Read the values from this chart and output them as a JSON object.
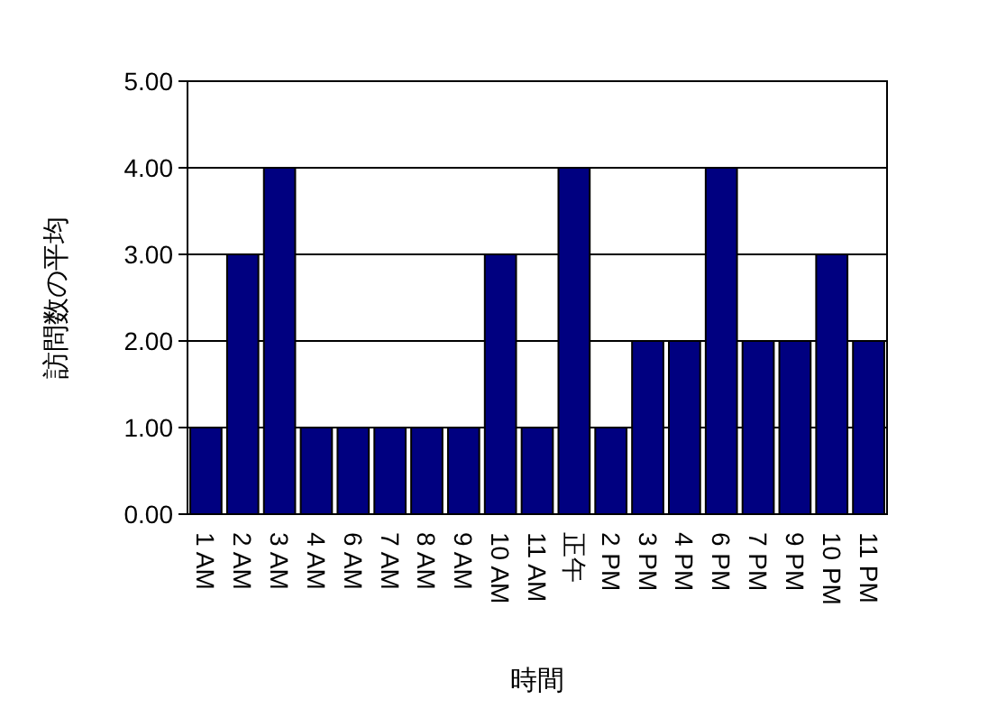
{
  "chart_data": {
    "type": "bar",
    "xlabel": "時間",
    "ylabel": "訪問数の平均",
    "categories": [
      "1 AM",
      "2 AM",
      "3 AM",
      "4 AM",
      "6 AM",
      "7 AM",
      "8 AM",
      "9 AM",
      "10 AM",
      "11 AM",
      "正午",
      "2 PM",
      "3 PM",
      "4 PM",
      "6 PM",
      "7 PM",
      "9 PM",
      "10 PM",
      "11 PM"
    ],
    "values": [
      1,
      3,
      4,
      1,
      1,
      1,
      1,
      1,
      3,
      1,
      4,
      1,
      2,
      2,
      4,
      2,
      2,
      3,
      2
    ],
    "color": "#000080",
    "ylim": [
      0,
      5
    ],
    "yticks": [
      {
        "value": 0,
        "label": "0.00"
      },
      {
        "value": 1,
        "label": "1.00"
      },
      {
        "value": 2,
        "label": "2.00"
      },
      {
        "value": 3,
        "label": "3.00"
      },
      {
        "value": 4,
        "label": "4.00"
      },
      {
        "value": 5,
        "label": "5.00"
      }
    ],
    "grid": "y"
  }
}
